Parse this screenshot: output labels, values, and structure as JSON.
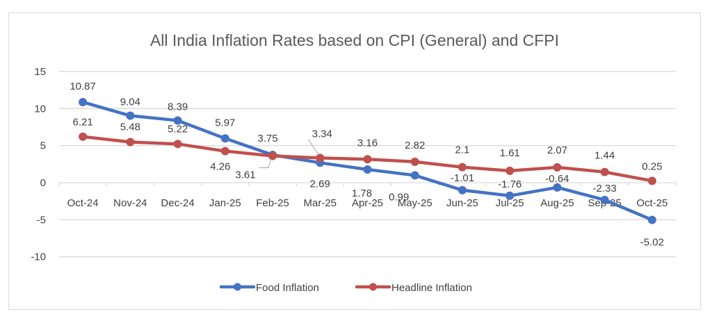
{
  "chart_data": {
    "type": "line",
    "title": "All India Inflation Rates based on CPI (General) and CFPI",
    "xlabel": "",
    "ylabel": "",
    "categories": [
      "Oct-24",
      "Nov-24",
      "Dec-24",
      "Jan-25",
      "Feb-25",
      "Mar-25",
      "Apr-25",
      "May-25",
      "Jun-25",
      "Jul-25",
      "Aug-25",
      "Sep-25",
      "Oct-25"
    ],
    "ylim": [
      -10,
      15
    ],
    "yticks": [
      -10,
      -5,
      0,
      5,
      10,
      15
    ],
    "grid": true,
    "legend_position": "bottom",
    "series": [
      {
        "name": "Food Inflation",
        "color": "#4472c4",
        "values": [
          10.87,
          9.04,
          8.39,
          5.97,
          3.75,
          2.69,
          1.78,
          0.99,
          -1.01,
          -1.76,
          -0.64,
          -2.33,
          -5.02
        ],
        "labels": [
          "10.87",
          "9.04",
          "8.39",
          "5.97",
          "3.75",
          "2.69",
          "1.78",
          "0.99",
          "-1.01",
          "-1.76",
          "-0.64",
          "-2.33",
          "-5.02"
        ]
      },
      {
        "name": "Headline Inflation",
        "color": "#c0504d",
        "values": [
          6.21,
          5.48,
          5.22,
          4.26,
          3.61,
          3.34,
          3.16,
          2.82,
          2.1,
          1.61,
          2.07,
          1.44,
          0.25
        ],
        "labels": [
          "6.21",
          "5.48",
          "5.22",
          "4.26",
          "3.61",
          "3.34",
          "3.16",
          "2.82",
          "2.1",
          "1.61",
          "2.07",
          "1.44",
          "0.25"
        ]
      }
    ]
  }
}
